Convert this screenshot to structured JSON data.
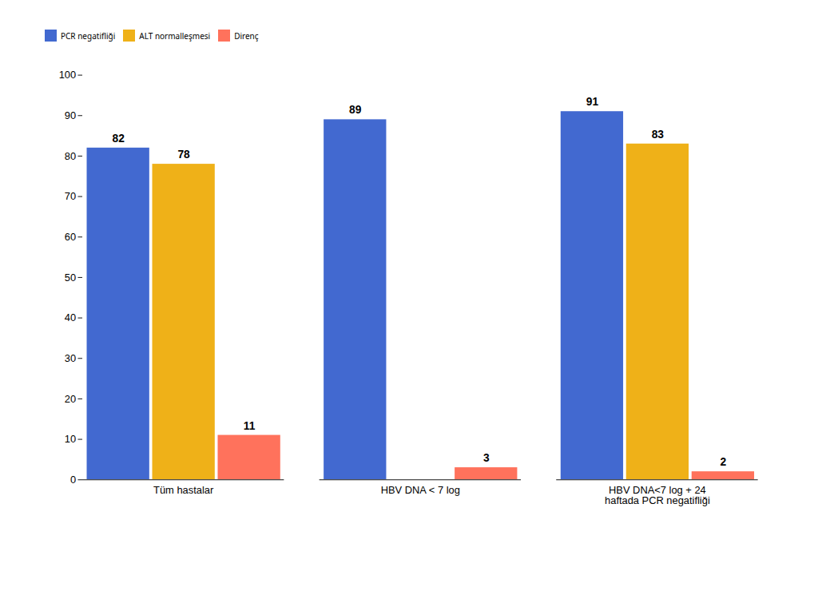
{
  "chart_data": {
    "type": "bar",
    "categories": [
      "Tüm hastalar",
      "HBV DNA < 7 log",
      "HBV DNA<7 log + 24\nhaftada PCR negatifliği"
    ],
    "series": [
      {
        "name": "PCR negatifliği",
        "values": [
          82,
          89,
          91
        ]
      },
      {
        "name": "ALT normalleşmesi",
        "values": [
          78,
          null,
          83
        ]
      },
      {
        "name": "Direnç",
        "values": [
          11,
          3,
          2
        ]
      }
    ],
    "ylim": [
      0,
      100
    ],
    "yticks": [
      0,
      10,
      20,
      30,
      40,
      50,
      60,
      70,
      80,
      90,
      100
    ],
    "grid": false,
    "legend": "top",
    "data_labels": true
  }
}
